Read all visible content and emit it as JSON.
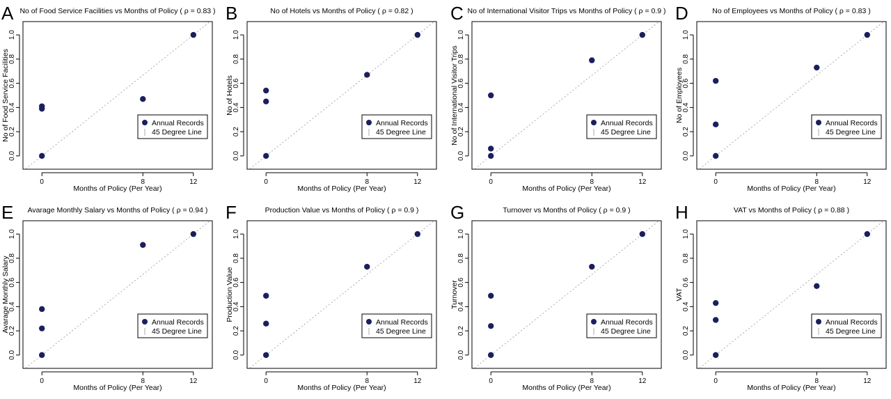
{
  "chart_data": [
    {
      "panel_letter": "A",
      "type": "scatter",
      "title": "No of Food Service Facilities vs Months of Policy ( ρ = 0.83 )",
      "xlabel": "Months of Policy (Per Year)",
      "ylabel": "No of Food Service Facilities",
      "xticks": [
        "0",
        "8",
        "12"
      ],
      "yticks": [
        "0.0",
        "0.2",
        "0.4",
        "0.6",
        "0.8",
        "1.0"
      ],
      "xlim": [
        -1.5,
        13.5
      ],
      "ylim": [
        -0.11,
        1.11
      ],
      "legend_position": "bottom-right",
      "series": [
        {
          "name": "Annual Records",
          "color": "#1b1f5e",
          "points": [
            [
              0,
              0.0
            ],
            [
              0,
              0.39
            ],
            [
              0,
              0.41
            ],
            [
              8,
              0.47
            ],
            [
              12,
              1.0
            ]
          ]
        },
        {
          "name": "45 Degree Line",
          "color": "#aaaaaa",
          "style": "dotted"
        }
      ]
    },
    {
      "panel_letter": "B",
      "type": "scatter",
      "title": "No of Hotels vs Months of Policy ( ρ = 0.82 )",
      "xlabel": "Months of Policy (Per Year)",
      "ylabel": "No of Hotels",
      "xticks": [
        "0",
        "8",
        "12"
      ],
      "yticks": [
        "0.0",
        "0.2",
        "0.4",
        "0.6",
        "0.8",
        "1.0"
      ],
      "xlim": [
        -1.5,
        13.5
      ],
      "ylim": [
        -0.11,
        1.11
      ],
      "legend_position": "bottom-right",
      "series": [
        {
          "name": "Annual Records",
          "color": "#1b1f5e",
          "points": [
            [
              0,
              0.0
            ],
            [
              0,
              0.45
            ],
            [
              0,
              0.54
            ],
            [
              8,
              0.67
            ],
            [
              12,
              1.0
            ]
          ]
        },
        {
          "name": "45 Degree Line",
          "color": "#aaaaaa",
          "style": "dotted"
        }
      ]
    },
    {
      "panel_letter": "C",
      "type": "scatter",
      "title": "No of International Visitor Trips vs Months of Policy ( ρ = 0.9 )",
      "xlabel": "Months of Policy (Per Year)",
      "ylabel": "No of International Visitor Trips",
      "xticks": [
        "0",
        "8",
        "12"
      ],
      "yticks": [
        "0.0",
        "0.2",
        "0.4",
        "0.6",
        "0.8",
        "1.0"
      ],
      "xlim": [
        -1.5,
        13.5
      ],
      "ylim": [
        -0.11,
        1.11
      ],
      "legend_position": "bottom-right",
      "series": [
        {
          "name": "Annual Records",
          "color": "#1b1f5e",
          "points": [
            [
              0,
              0.0
            ],
            [
              0,
              0.06
            ],
            [
              0,
              0.5
            ],
            [
              8,
              0.79
            ],
            [
              12,
              1.0
            ]
          ]
        },
        {
          "name": "45 Degree Line",
          "color": "#aaaaaa",
          "style": "dotted"
        }
      ]
    },
    {
      "panel_letter": "D",
      "type": "scatter",
      "title": "No of Employees vs Months of Policy ( ρ = 0.83 )",
      "xlabel": "Months of Policy (Per Year)",
      "ylabel": "No of Employees",
      "xticks": [
        "0",
        "8",
        "12"
      ],
      "yticks": [
        "0.0",
        "0.2",
        "0.4",
        "0.6",
        "0.8",
        "1.0"
      ],
      "xlim": [
        -1.5,
        13.5
      ],
      "ylim": [
        -0.11,
        1.11
      ],
      "legend_position": "bottom-right",
      "series": [
        {
          "name": "Annual Records",
          "color": "#1b1f5e",
          "points": [
            [
              0,
              0.0
            ],
            [
              0,
              0.26
            ],
            [
              0,
              0.62
            ],
            [
              8,
              0.73
            ],
            [
              12,
              1.0
            ]
          ]
        },
        {
          "name": "45 Degree Line",
          "color": "#aaaaaa",
          "style": "dotted"
        }
      ]
    },
    {
      "panel_letter": "E",
      "type": "scatter",
      "title": "Avarage Monthly Salary vs Months of Policy ( ρ = 0.94 )",
      "xlabel": "Months of Policy (Per Year)",
      "ylabel": "Avarage Monthly Salary",
      "xticks": [
        "0",
        "8",
        "12"
      ],
      "yticks": [
        "0.0",
        "0.2",
        "0.4",
        "0.6",
        "0.8",
        "1.0"
      ],
      "xlim": [
        -1.5,
        13.5
      ],
      "ylim": [
        -0.11,
        1.11
      ],
      "legend_position": "bottom-right",
      "series": [
        {
          "name": "Annual Records",
          "color": "#1b1f5e",
          "points": [
            [
              0,
              0.0
            ],
            [
              0,
              0.22
            ],
            [
              0,
              0.38
            ],
            [
              8,
              0.91
            ],
            [
              12,
              1.0
            ]
          ]
        },
        {
          "name": "45 Degree Line",
          "color": "#aaaaaa",
          "style": "dotted"
        }
      ]
    },
    {
      "panel_letter": "F",
      "type": "scatter",
      "title": "Production Value vs Months of Policy ( ρ = 0.9 )",
      "xlabel": "Months of Policy (Per Year)",
      "ylabel": "Production Value",
      "xticks": [
        "0",
        "8",
        "12"
      ],
      "yticks": [
        "0.0",
        "0.2",
        "0.4",
        "0.6",
        "0.8",
        "1.0"
      ],
      "xlim": [
        -1.5,
        13.5
      ],
      "ylim": [
        -0.11,
        1.11
      ],
      "legend_position": "bottom-right",
      "series": [
        {
          "name": "Annual Records",
          "color": "#1b1f5e",
          "points": [
            [
              0,
              0.0
            ],
            [
              0,
              0.26
            ],
            [
              0,
              0.49
            ],
            [
              8,
              0.73
            ],
            [
              12,
              1.0
            ]
          ]
        },
        {
          "name": "45 Degree Line",
          "color": "#aaaaaa",
          "style": "dotted"
        }
      ]
    },
    {
      "panel_letter": "G",
      "type": "scatter",
      "title": "Turnover vs Months of Policy ( ρ = 0.9 )",
      "xlabel": "Months of Policy (Per Year)",
      "ylabel": "Turnover",
      "xticks": [
        "0",
        "8",
        "12"
      ],
      "yticks": [
        "0.0",
        "0.2",
        "0.4",
        "0.6",
        "0.8",
        "1.0"
      ],
      "xlim": [
        -1.5,
        13.5
      ],
      "ylim": [
        -0.11,
        1.11
      ],
      "legend_position": "bottom-right",
      "series": [
        {
          "name": "Annual Records",
          "color": "#1b1f5e",
          "points": [
            [
              0,
              0.0
            ],
            [
              0,
              0.24
            ],
            [
              0,
              0.49
            ],
            [
              8,
              0.73
            ],
            [
              12,
              1.0
            ]
          ]
        },
        {
          "name": "45 Degree Line",
          "color": "#aaaaaa",
          "style": "dotted"
        }
      ]
    },
    {
      "panel_letter": "H",
      "type": "scatter",
      "title": "VAT vs Months of Policy ( ρ = 0.88 )",
      "xlabel": "Months of Policy (Per Year)",
      "ylabel": "VAT",
      "xticks": [
        "0",
        "8",
        "12"
      ],
      "yticks": [
        "0.0",
        "0.2",
        "0.4",
        "0.6",
        "0.8",
        "1.0"
      ],
      "xlim": [
        -1.5,
        13.5
      ],
      "ylim": [
        -0.11,
        1.11
      ],
      "legend_position": "bottom-right",
      "series": [
        {
          "name": "Annual Records",
          "color": "#1b1f5e",
          "points": [
            [
              0,
              0.0
            ],
            [
              0,
              0.29
            ],
            [
              0,
              0.43
            ],
            [
              8,
              0.57
            ],
            [
              12,
              1.0
            ]
          ]
        },
        {
          "name": "45 Degree Line",
          "color": "#aaaaaa",
          "style": "dotted"
        }
      ]
    }
  ]
}
